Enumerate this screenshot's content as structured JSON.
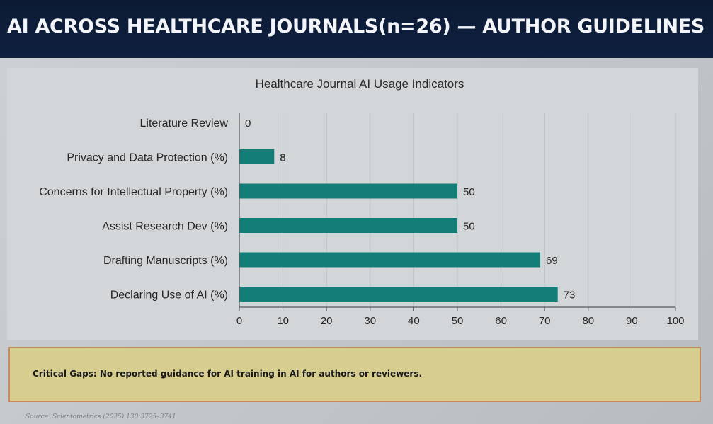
{
  "header": {
    "title": "AI ACROSS HEALTHCARE JOURNALS(n=26) — AUTHOR GUIDELINES"
  },
  "chart_data": {
    "type": "bar",
    "orientation": "horizontal",
    "title": "Healthcare Journal AI Usage Indicators",
    "categories": [
      "Literature Review",
      "Privacy and Data Protection (%)",
      "Concerns for Intellectual Property (%)",
      "Assist Research Dev (%)",
      "Drafting Manuscripts (%)",
      "Declaring Use of AI (%)"
    ],
    "values": [
      0,
      8,
      50,
      50,
      69,
      73
    ],
    "data_labels": [
      "0",
      "8",
      "50",
      "50",
      "69",
      "73"
    ],
    "xlim": [
      0,
      100
    ],
    "xticks": [
      0,
      10,
      20,
      30,
      40,
      50,
      60,
      70,
      80,
      90,
      100
    ],
    "xlabel": "",
    "ylabel": "",
    "grid": true,
    "legend": "none",
    "bar_color": "#137e78"
  },
  "callout": {
    "text": "Critical Gaps: No reported guidance for AI training in AI for authors or reviewers."
  },
  "footer": {
    "source": "Source: Scientometrics (2025) 130:3725–3741"
  },
  "colors": {
    "header_bg": "#0f2040",
    "bar": "#137e78",
    "callout_bg": "#d6cd8e",
    "callout_border": "#c78a5a"
  }
}
